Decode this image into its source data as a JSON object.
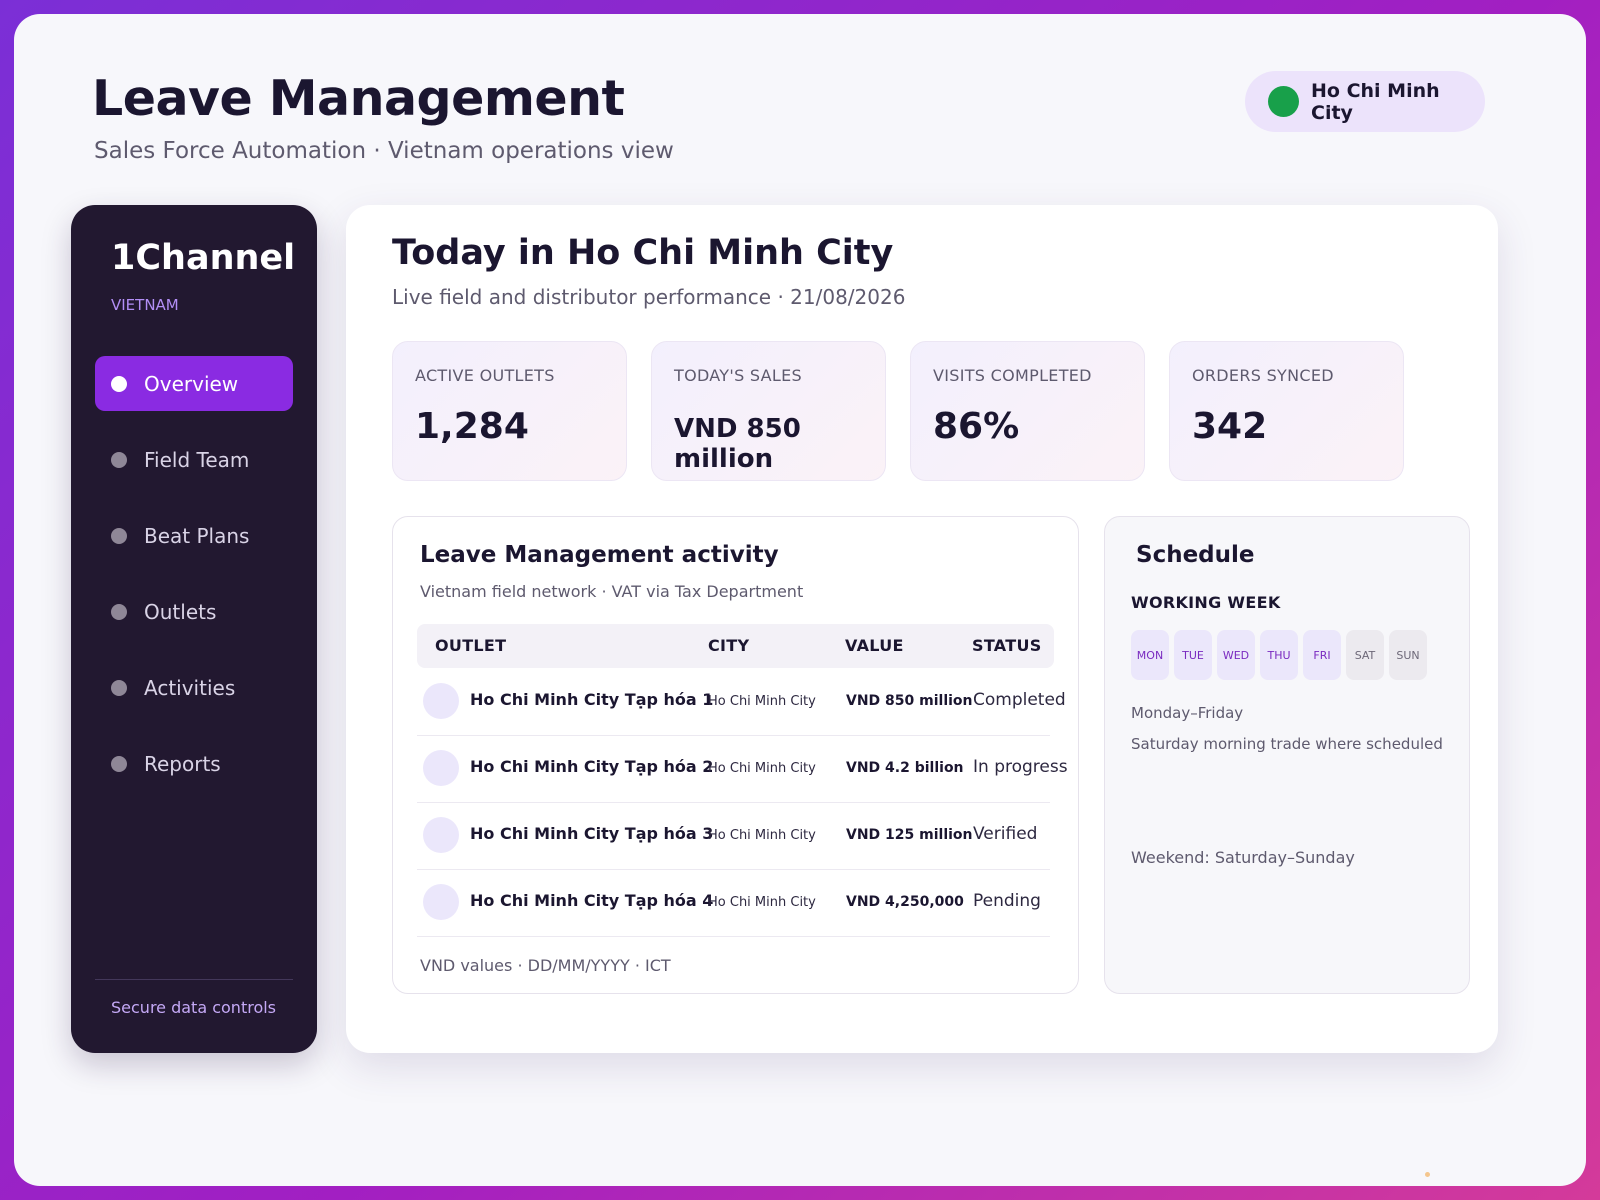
{
  "header": {
    "title": "Leave Management",
    "subtitle": "Sales Force Automation · Vietnam operations view",
    "city_badge": "Ho Chi Minh City",
    "status_color": "#18a04a"
  },
  "sidebar": {
    "brand": "1Channel",
    "country": "VIETNAM",
    "items": [
      {
        "label": "Overview",
        "active": true
      },
      {
        "label": "Field Team",
        "active": false
      },
      {
        "label": "Beat Plans",
        "active": false
      },
      {
        "label": "Outlets",
        "active": false
      },
      {
        "label": "Activities",
        "active": false
      },
      {
        "label": "Reports",
        "active": false
      }
    ],
    "footer": "Secure data controls"
  },
  "main": {
    "title": "Today in Ho Chi Minh City",
    "subtitle": "Live field and distributor performance · 21/08/2026",
    "kpis": [
      {
        "label": "ACTIVE OUTLETS",
        "value": "1,284"
      },
      {
        "label": "TODAY'S SALES",
        "value": "VND 850 million"
      },
      {
        "label": "VISITS COMPLETED",
        "value": "86%"
      },
      {
        "label": "ORDERS SYNCED",
        "value": "342"
      }
    ]
  },
  "activity": {
    "title": "Leave Management activity",
    "subtitle": "Vietnam field network · VAT via Tax Department",
    "columns": [
      "OUTLET",
      "CITY",
      "VALUE",
      "STATUS"
    ],
    "rows": [
      {
        "outlet": "Ho Chi Minh City Tạp hóa 1",
        "city": "Ho Chi Minh City",
        "value": "VND 850 million",
        "status": "Completed"
      },
      {
        "outlet": "Ho Chi Minh City Tạp hóa 2",
        "city": "Ho Chi Minh City",
        "value": "VND 4.2 billion",
        "status": "In progress"
      },
      {
        "outlet": "Ho Chi Minh City Tạp hóa 3",
        "city": "Ho Chi Minh City",
        "value": "VND 125 million",
        "status": "Verified"
      },
      {
        "outlet": "Ho Chi Minh City Tạp hóa 4",
        "city": "Ho Chi Minh City",
        "value": "VND 4,250,000",
        "status": "Pending"
      }
    ],
    "footer": "VND values · DD/MM/YYYY · ICT"
  },
  "schedule": {
    "title": "Schedule",
    "week_label": "WORKING WEEK",
    "days": [
      "MON",
      "TUE",
      "WED",
      "THU",
      "FRI",
      "SAT",
      "SUN"
    ],
    "working_hours": "Monday–Friday",
    "saturday_note": "Saturday morning trade where scheduled",
    "weekend": "Weekend: Saturday–Sunday"
  },
  "colors": {
    "accent": "#8a2be2",
    "sidebar_bg": "#221830",
    "text_dark": "#1b1630"
  }
}
